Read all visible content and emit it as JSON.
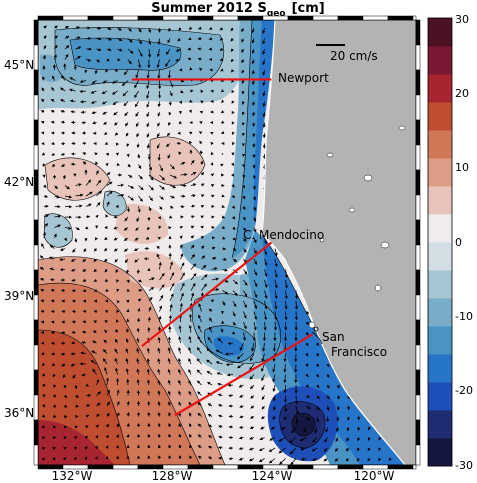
{
  "title": {
    "main": "Summer 2012 S",
    "subscript": "geo",
    "unit": "[cm]"
  },
  "axes": {
    "lat_ticks": [
      "45°N",
      "42°N",
      "39°N",
      "36°N"
    ],
    "lon_ticks": [
      "132°W",
      "128°W",
      "124°W",
      "120°W"
    ],
    "lat_range": [
      34.6,
      46.2
    ],
    "lon_range": [
      -133.4,
      -118.5
    ]
  },
  "scale_arrow": {
    "label": "20 cm/s"
  },
  "places": [
    {
      "name": "Newport"
    },
    {
      "name": "C. Mendocino"
    },
    {
      "name": "San"
    },
    {
      "name": "Francisco"
    }
  ],
  "transects": [
    {
      "from": [
        -129.7,
        44.65
      ],
      "to": [
        -124.2,
        44.65
      ]
    },
    {
      "from": [
        -129.3,
        37.7
      ],
      "to": [
        -124.2,
        40.4
      ]
    },
    {
      "from": [
        -128.0,
        35.9
      ],
      "to": [
        -122.6,
        38.0
      ]
    }
  ],
  "colorbar": {
    "ticks": [
      "30",
      "20",
      "10",
      "0",
      "-10",
      "-20",
      "-30"
    ],
    "range": [
      -30,
      30
    ],
    "colors": [
      "#161740",
      "#1f2c74",
      "#1e4fb8",
      "#2675c8",
      "#4a93c5",
      "#79acc8",
      "#a7c6d4",
      "#d1dee4",
      "#f1ecec",
      "#e8c3b9",
      "#dd9c86",
      "#d07758",
      "#bf4d30",
      "#a72431",
      "#7a1834",
      "#4a1223"
    ]
  },
  "colors": {
    "land": "#b3b3b3",
    "transect": "#ee1111"
  }
}
